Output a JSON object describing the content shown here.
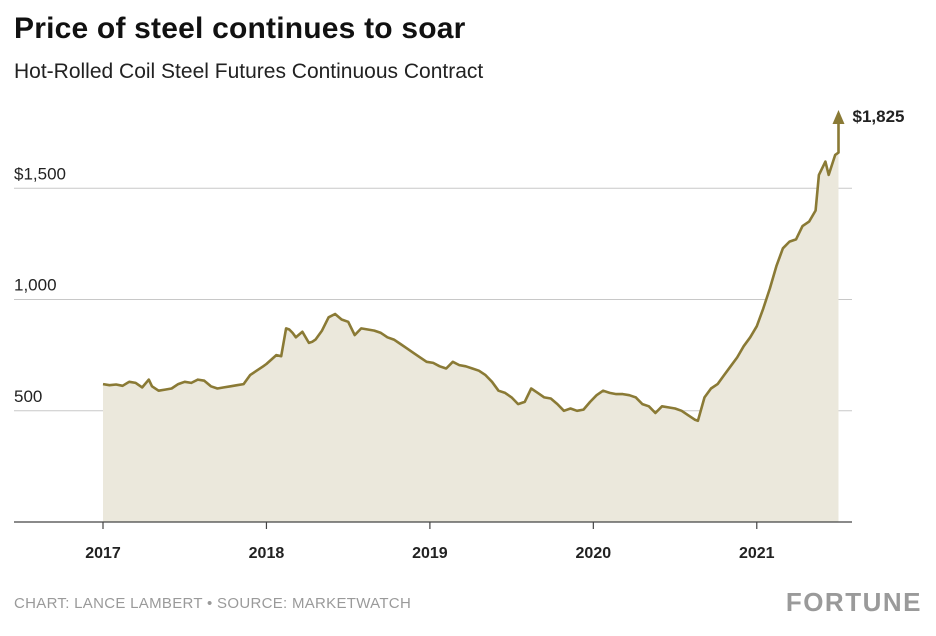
{
  "header": {
    "title": "Price of steel continues to soar",
    "subtitle": "Hot-Rolled Coil Steel Futures Continuous Contract"
  },
  "footer": {
    "credit": "CHART: LANCE LAMBERT • SOURCE: MARKETWATCH",
    "brand": "FORTUNE"
  },
  "colors": {
    "line": "#8a7a35",
    "area": "#ebe8dc",
    "grid": "#c8c8c8",
    "axis": "#444444"
  },
  "chart_data": {
    "type": "area",
    "title": "Price of steel continues to soar",
    "subtitle": "Hot-Rolled Coil Steel Futures Continuous Contract",
    "xlabel": "",
    "ylabel": "",
    "xlim": [
      2017.0,
      2021.55
    ],
    "ylim": [
      0,
      1850
    ],
    "x_ticks": [
      2017,
      2018,
      2019,
      2020,
      2021
    ],
    "x_tick_labels": [
      "2017",
      "2018",
      "2019",
      "2020",
      "2021"
    ],
    "y_ticks": [
      500,
      1000,
      1500
    ],
    "y_tick_labels": [
      "500",
      "1,000",
      "$1,500"
    ],
    "grid": "horizontal",
    "end_label": "$1,825",
    "series": [
      {
        "x": [
          2017.0,
          2017.04,
          2017.08,
          2017.12,
          2017.16,
          2017.2,
          2017.24,
          2017.28,
          2017.3,
          2017.34,
          2017.38,
          2017.42,
          2017.46,
          2017.5,
          2017.54,
          2017.58,
          2017.62,
          2017.66,
          2017.7,
          2017.74,
          2017.78,
          2017.82,
          2017.86,
          2017.9,
          2017.94,
          2017.98,
          2018.0,
          2018.03,
          2018.06,
          2018.09,
          2018.12,
          2018.14,
          2018.16,
          2018.18,
          2018.22,
          2018.26,
          2018.28,
          2018.3,
          2018.34,
          2018.38,
          2018.42,
          2018.46,
          2018.5,
          2018.54,
          2018.58,
          2018.62,
          2018.66,
          2018.7,
          2018.74,
          2018.78,
          2018.82,
          2018.86,
          2018.9,
          2018.94,
          2018.98,
          2019.02,
          2019.06,
          2019.1,
          2019.14,
          2019.18,
          2019.22,
          2019.26,
          2019.3,
          2019.34,
          2019.38,
          2019.42,
          2019.46,
          2019.5,
          2019.54,
          2019.58,
          2019.62,
          2019.66,
          2019.7,
          2019.74,
          2019.78,
          2019.82,
          2019.86,
          2019.9,
          2019.94,
          2019.98,
          2020.02,
          2020.06,
          2020.1,
          2020.14,
          2020.18,
          2020.22,
          2020.26,
          2020.3,
          2020.34,
          2020.38,
          2020.42,
          2020.46,
          2020.5,
          2020.54,
          2020.58,
          2020.62,
          2020.64,
          2020.68,
          2020.72,
          2020.76,
          2020.8,
          2020.84,
          2020.88,
          2020.92,
          2020.96,
          2021.0,
          2021.04,
          2021.08,
          2021.12,
          2021.16,
          2021.2,
          2021.24,
          2021.28,
          2021.32,
          2021.36,
          2021.38,
          2021.4,
          2021.42,
          2021.44,
          2021.48,
          2021.5,
          2021.5
        ],
        "y": [
          620,
          615,
          618,
          612,
          630,
          625,
          605,
          640,
          610,
          590,
          595,
          600,
          620,
          630,
          625,
          640,
          635,
          610,
          600,
          605,
          610,
          615,
          620,
          660,
          680,
          700,
          710,
          730,
          750,
          745,
          870,
          865,
          850,
          830,
          855,
          805,
          810,
          820,
          860,
          920,
          935,
          910,
          900,
          840,
          870,
          865,
          860,
          850,
          830,
          820,
          800,
          780,
          760,
          740,
          720,
          715,
          700,
          690,
          720,
          705,
          700,
          690,
          680,
          660,
          630,
          590,
          580,
          560,
          530,
          540,
          600,
          580,
          560,
          555,
          530,
          500,
          510,
          500,
          505,
          540,
          570,
          590,
          580,
          575,
          575,
          570,
          560,
          530,
          520,
          490,
          520,
          515,
          510,
          500,
          480,
          460,
          455,
          560,
          600,
          620,
          660,
          700,
          740,
          790,
          830,
          880,
          960,
          1050,
          1150,
          1230,
          1260,
          1270,
          1330,
          1350,
          1400,
          1560,
          1590,
          1620,
          1560,
          1650,
          1660,
          1825
        ]
      }
    ]
  }
}
